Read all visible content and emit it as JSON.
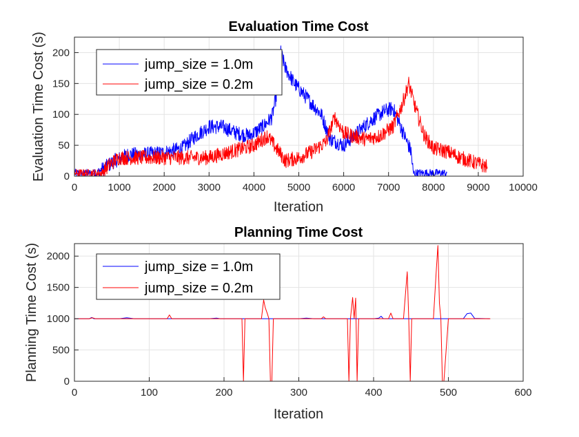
{
  "chart_data": [
    {
      "type": "line",
      "title": "Evaluation Time Cost",
      "xlabel": "Iteration",
      "ylabel": "Evaluation Time Cost (s)",
      "xlim": [
        0,
        10000
      ],
      "ylim": [
        0,
        225
      ],
      "xticks": [
        0,
        1000,
        2000,
        3000,
        4000,
        5000,
        6000,
        7000,
        8000,
        9000,
        10000
      ],
      "yticks": [
        0,
        50,
        100,
        150,
        200
      ],
      "grid": true,
      "legend_position": "top-left",
      "noise": 12,
      "series": [
        {
          "name": "jump_size = 1.0m",
          "color": "#0000ff",
          "x": [
            0,
            500,
            700,
            900,
            1200,
            1500,
            2000,
            2400,
            2700,
            3000,
            3300,
            3600,
            3900,
            4200,
            4400,
            4500,
            4600,
            4700,
            4900,
            5200,
            5500,
            5700,
            6000,
            6300,
            6600,
            6900,
            7100,
            7300,
            7500,
            7550,
            8000,
            8300
          ],
          "y": [
            5,
            5,
            15,
            25,
            35,
            35,
            38,
            45,
            65,
            80,
            80,
            70,
            65,
            80,
            95,
            130,
            200,
            175,
            150,
            125,
            100,
            60,
            50,
            70,
            90,
            105,
            110,
            75,
            40,
            5,
            5,
            5
          ]
        },
        {
          "name": "jump_size = 0.2m",
          "color": "#ff0000",
          "x": [
            0,
            600,
            800,
            1000,
            1500,
            2000,
            2500,
            3000,
            3500,
            4000,
            4300,
            4500,
            4700,
            5000,
            5300,
            5600,
            5800,
            6000,
            6200,
            6500,
            6800,
            7100,
            7300,
            7450,
            7600,
            7800,
            8000,
            8300,
            8600,
            9000,
            9200
          ],
          "y": [
            5,
            5,
            20,
            30,
            30,
            30,
            30,
            30,
            40,
            50,
            65,
            45,
            25,
            30,
            40,
            55,
            95,
            70,
            65,
            60,
            65,
            80,
            115,
            150,
            110,
            65,
            45,
            40,
            30,
            20,
            15
          ]
        }
      ]
    },
    {
      "type": "line",
      "title": "Planning Time Cost",
      "xlabel": "Iteration",
      "ylabel": "Planning Time Cost (s)",
      "xlim": [
        0,
        600
      ],
      "ylim": [
        0,
        2200
      ],
      "xticks": [
        0,
        100,
        200,
        300,
        400,
        500,
        600
      ],
      "yticks": [
        0,
        500,
        1000,
        1500,
        2000
      ],
      "grid": true,
      "legend_position": "top-left",
      "noise": 0,
      "series": [
        {
          "name": "jump_size = 1.0m",
          "color": "#0000ff",
          "x": [
            0,
            20,
            23,
            26,
            60,
            70,
            80,
            180,
            190,
            195,
            240,
            300,
            310,
            320,
            400,
            407,
            410,
            413,
            420,
            520,
            525,
            530,
            535,
            555
          ],
          "y": [
            1000,
            1000,
            1020,
            1000,
            1000,
            1015,
            1000,
            1000,
            1010,
            1000,
            1000,
            1000,
            1010,
            1000,
            1000,
            1010,
            1040,
            1000,
            1000,
            1000,
            1080,
            1090,
            1005,
            1000
          ]
        },
        {
          "name": "jump_size = 0.2m",
          "color": "#ff0000",
          "x": [
            0,
            20,
            24,
            28,
            124,
            127,
            130,
            200,
            224,
            226,
            228,
            250,
            253,
            255,
            258,
            260,
            262,
            264,
            266,
            330,
            333,
            336,
            360,
            365,
            367,
            369,
            372,
            374,
            376,
            378,
            380,
            382,
            420,
            423,
            426,
            440,
            445,
            447,
            449,
            451,
            453,
            480,
            484,
            486,
            488,
            490,
            492,
            494,
            500,
            556
          ],
          "y": [
            1000,
            1000,
            1015,
            1000,
            1000,
            1060,
            1000,
            1000,
            1000,
            0,
            1000,
            1000,
            1300,
            1180,
            1080,
            1000,
            0,
            0,
            1000,
            1000,
            1030,
            1000,
            1000,
            1000,
            0,
            1000,
            1340,
            1000,
            1330,
            0,
            1000,
            1000,
            1000,
            1090,
            1000,
            1000,
            1750,
            1000,
            0,
            1000,
            1000,
            1000,
            1800,
            2170,
            1250,
            1000,
            0,
            0,
            1000,
            1000
          ]
        }
      ]
    }
  ]
}
